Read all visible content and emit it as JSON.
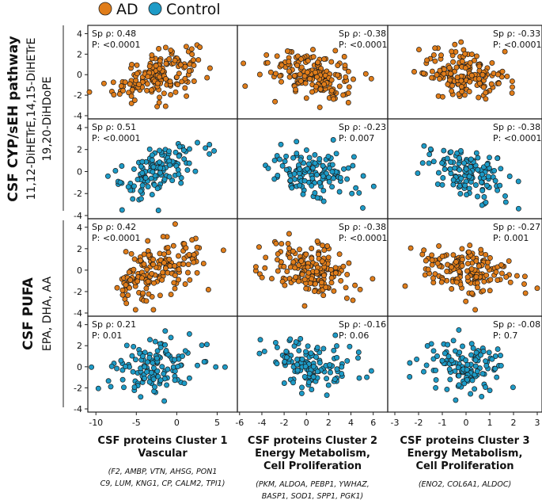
{
  "legend": [
    {
      "label": "AD",
      "color": "#e07d1a"
    },
    {
      "label": "Control",
      "color": "#1d9bc7"
    }
  ],
  "row_groups": [
    {
      "title": "CSF CYP/sEH pathway",
      "subtitle_lines": [
        "11,12-DiHETrE,14,15-DiHETrE",
        "19,20-DiHDoPE"
      ]
    },
    {
      "title": "CSF PUFA",
      "subtitle_lines": [
        "EPA, DHA, AA"
      ]
    }
  ],
  "chart_data": {
    "type": "scatter",
    "title": "",
    "ylim": [
      -4,
      4.5
    ],
    "y_ticks": [
      -4,
      -2,
      0,
      2,
      4
    ],
    "rows": [
      {
        "group": "AD",
        "metabolite": "CSF CYP/sEH pathway"
      },
      {
        "group": "Control",
        "metabolite": "CSF CYP/sEH pathway"
      },
      {
        "group": "AD",
        "metabolite": "CSF PUFA"
      },
      {
        "group": "Control",
        "metabolite": "CSF PUFA"
      }
    ],
    "columns": [
      {
        "xlabel_lines": [
          "CSF proteins Cluster 1",
          "Vascular"
        ],
        "proteins_lines": [
          "(F2, AMBP, VTN, AHSG, PON1",
          "C9, LUM, KNG1, CP, CALM2, TPI1)"
        ],
        "xlim": [
          -11,
          7.5
        ],
        "x_ticks": [
          -10,
          -5,
          0,
          5
        ],
        "x_tick_labels": [
          "-10",
          "-5",
          "0",
          "5"
        ]
      },
      {
        "xlabel_lines": [
          "CSF proteins Cluster 2",
          "Energy Metabolism,",
          "Cell Proliferation"
        ],
        "proteins_lines": [
          "(PKM, ALDOA, PEBP1, YWHAZ,",
          "BASP1, SOD1, SPP1, PGK1)"
        ],
        "xlim": [
          -6.2,
          7.3
        ],
        "x_ticks": [
          -6,
          -4,
          -2,
          0,
          2,
          4,
          6
        ],
        "x_tick_labels": [
          "-6",
          "-4",
          "-2",
          "0",
          "2",
          "4",
          "6"
        ]
      },
      {
        "xlabel_lines": [
          "CSF proteins Cluster 3",
          "Energy Metabolism,",
          "Cell Proliferation"
        ],
        "proteins_lines": [
          "(ENO2, COL6A1, ALDOC)"
        ],
        "xlim": [
          -3.3,
          3.2
        ],
        "x_ticks": [
          -3,
          -2,
          -1,
          0,
          1,
          2,
          3
        ],
        "x_tick_labels": [
          "-3",
          "-2",
          "-1",
          "0",
          "1",
          "2",
          "3"
        ]
      }
    ],
    "panels": [
      {
        "row": 0,
        "col": 0,
        "rho": "Sp ρ: 0.48",
        "p": "P: <0.0001",
        "align": "left",
        "r": 0.48,
        "n": 170
      },
      {
        "row": 0,
        "col": 1,
        "rho": "Sp ρ: -0.38",
        "p": "P: <0.0001",
        "align": "right",
        "r": -0.38,
        "n": 170
      },
      {
        "row": 0,
        "col": 2,
        "rho": "Sp ρ: -0.33",
        "p": "P: <0.0001",
        "align": "right",
        "r": -0.33,
        "n": 170
      },
      {
        "row": 1,
        "col": 0,
        "rho": "Sp ρ: 0.51",
        "p": "P: <0.0001",
        "align": "left",
        "r": 0.51,
        "n": 130
      },
      {
        "row": 1,
        "col": 1,
        "rho": "Sp ρ: -0.23",
        "p": "P: 0.007",
        "align": "right",
        "r": -0.23,
        "n": 130
      },
      {
        "row": 1,
        "col": 2,
        "rho": "Sp ρ: -0.38",
        "p": "P: <0.0001",
        "align": "right",
        "r": -0.38,
        "n": 130
      },
      {
        "row": 2,
        "col": 0,
        "rho": "Sp ρ: 0.42",
        "p": "P: <0.0001",
        "align": "left",
        "r": 0.42,
        "n": 170
      },
      {
        "row": 2,
        "col": 1,
        "rho": "Sp ρ: -0.38",
        "p": "P: <0.0001",
        "align": "right",
        "r": -0.38,
        "n": 170
      },
      {
        "row": 2,
        "col": 2,
        "rho": "Sp ρ: -0.27",
        "p": "P: 0.001",
        "align": "right",
        "r": -0.27,
        "n": 170
      },
      {
        "row": 3,
        "col": 0,
        "rho": "Sp ρ: 0.21",
        "p": "P: 0.01",
        "align": "left",
        "r": 0.21,
        "n": 130
      },
      {
        "row": 3,
        "col": 1,
        "rho": "Sp ρ: -0.16",
        "p": "P: 0.06",
        "align": "right",
        "r": -0.16,
        "n": 130
      },
      {
        "row": 3,
        "col": 2,
        "rho": "Sp ρ: -0.08",
        "p": "P: 0.7",
        "align": "right",
        "r": -0.08,
        "n": 130
      }
    ]
  }
}
